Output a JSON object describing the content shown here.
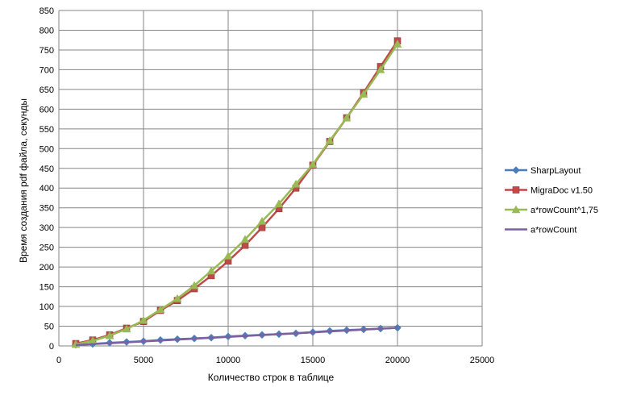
{
  "chart_data": {
    "type": "line",
    "title": "",
    "xlabel": "Количество строк в таблице",
    "ylabel": "Время создания pdf файла, секунды",
    "xlim": [
      0,
      25000
    ],
    "ylim": [
      0,
      850
    ],
    "x_ticks": [
      0,
      5000,
      10000,
      15000,
      20000,
      25000
    ],
    "y_ticks": [
      0,
      50,
      100,
      150,
      200,
      250,
      300,
      350,
      400,
      450,
      500,
      550,
      600,
      650,
      700,
      750,
      800,
      850
    ],
    "grid": "vertical and horizontal major gridlines",
    "legend_position": "right",
    "x": [
      1000,
      2000,
      3000,
      4000,
      5000,
      6000,
      7000,
      8000,
      9000,
      10000,
      11000,
      12000,
      13000,
      14000,
      15000,
      16000,
      17000,
      18000,
      19000,
      20000
    ],
    "series": [
      {
        "name": "SharpLayout",
        "color": "#4a7ebb",
        "marker": "diamond",
        "values": [
          3,
          5,
          8,
          10,
          12,
          15,
          17,
          19,
          21,
          24,
          26,
          28,
          30,
          32,
          35,
          38,
          40,
          42,
          44,
          46
        ]
      },
      {
        "name": "MigraDoc v1.50",
        "color": "#be4b48",
        "marker": "square",
        "values": [
          6,
          15,
          28,
          45,
          62,
          90,
          115,
          145,
          178,
          215,
          255,
          300,
          348,
          400,
          458,
          518,
          578,
          642,
          708,
          773
        ]
      },
      {
        "name": "a*rowCount^1,75",
        "color": "#98b954",
        "marker": "triangle",
        "values": [
          4,
          13,
          26,
          43,
          65,
          92,
          120,
          153,
          190,
          228,
          270,
          316,
          360,
          410,
          460,
          520,
          578,
          638,
          700,
          765
        ]
      },
      {
        "name": "a*rowCount",
        "color": "#7d60a0",
        "marker": "none",
        "values": [
          2.3,
          4.6,
          6.9,
          9.2,
          11.5,
          13.8,
          16.1,
          18.4,
          20.7,
          23,
          25.3,
          27.6,
          29.9,
          32.2,
          34.5,
          36.8,
          39.1,
          41.4,
          43.7,
          46
        ]
      }
    ]
  }
}
